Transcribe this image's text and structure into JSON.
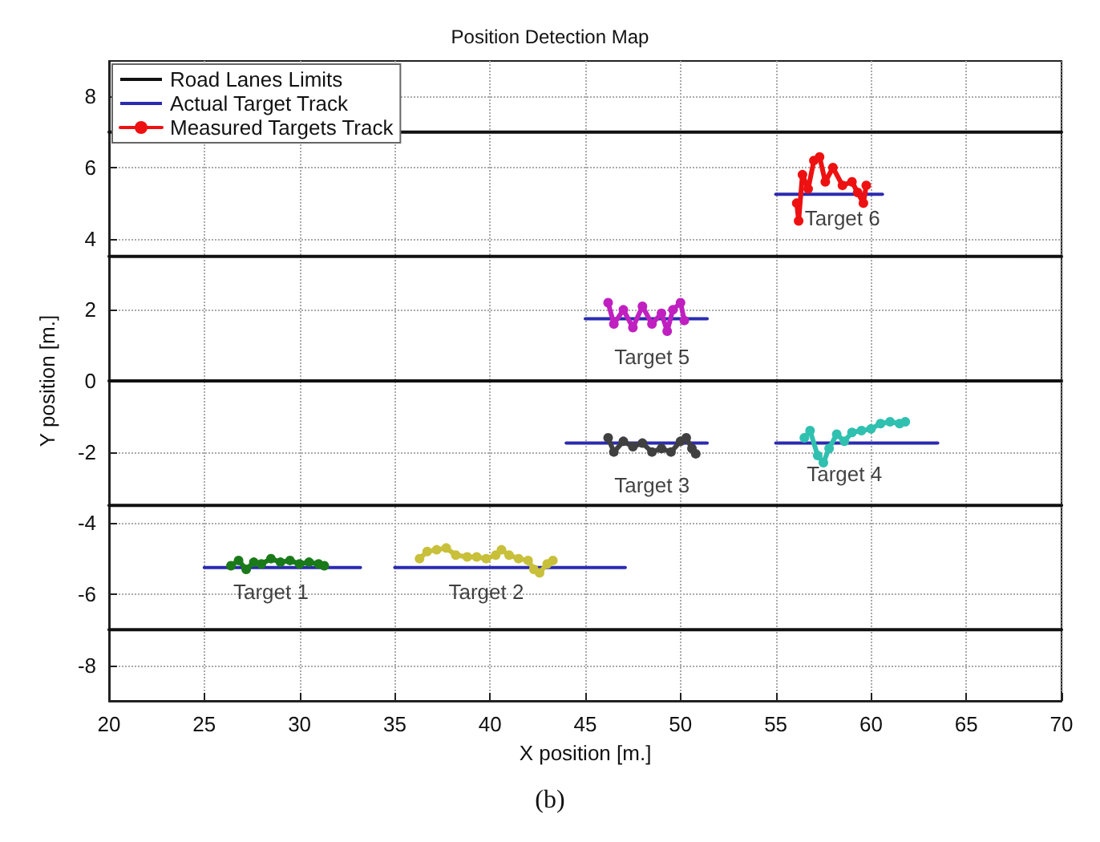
{
  "chart_data": {
    "type": "line",
    "title": "Position Detection Map",
    "xlabel": "X position [m.]",
    "ylabel": "Y position [m.]",
    "xlim": [
      20,
      70
    ],
    "xticks": [
      20,
      25,
      30,
      35,
      40,
      45,
      50,
      55,
      60,
      65,
      70
    ],
    "ylim": [
      -9,
      9
    ],
    "yticks": [
      -8,
      -6,
      -4,
      -2,
      0,
      2,
      4,
      6,
      8
    ],
    "grid": true,
    "legend": "top left",
    "series": [
      {
        "name": "Road Lanes Limits",
        "color": "#111111",
        "marker": "none",
        "x": [
          20,
          70
        ],
        "values": [
          7,
          7
        ]
      },
      {
        "color": "#111111",
        "marker": "none",
        "x": [
          20,
          70
        ],
        "values": [
          3.5,
          3.5
        ]
      },
      {
        "color": "#111111",
        "marker": "none",
        "x": [
          20,
          70
        ],
        "values": [
          0,
          0
        ]
      },
      {
        "color": "#111111",
        "marker": "none",
        "x": [
          20,
          70
        ],
        "values": [
          -3.5,
          -3.5
        ]
      },
      {
        "color": "#111111",
        "marker": "none",
        "x": [
          20,
          70
        ],
        "values": [
          -7,
          -7
        ]
      },
      {
        "name": "Actual Target Track",
        "color": "#2b2bb0",
        "marker": "none",
        "x": [
          25,
          33.2
        ],
        "values": [
          -5.25,
          -5.25
        ]
      },
      {
        "color": "#2b2bb0",
        "marker": "none",
        "x": [
          35,
          47.1
        ],
        "values": [
          -5.25,
          -5.25
        ]
      },
      {
        "color": "#2b2bb0",
        "marker": "none",
        "x": [
          44,
          51.4
        ],
        "values": [
          -1.75,
          -1.75
        ]
      },
      {
        "color": "#2b2bb0",
        "marker": "none",
        "x": [
          55,
          63.5
        ],
        "values": [
          -1.75,
          -1.75
        ]
      },
      {
        "color": "#2b2bb0",
        "marker": "none",
        "x": [
          45,
          51.4
        ],
        "values": [
          1.75,
          1.75
        ]
      },
      {
        "color": "#2b2bb0",
        "marker": "none",
        "x": [
          55,
          60.6
        ],
        "values": [
          5.25,
          5.25
        ]
      },
      {
        "color": "#1a7a1a",
        "marker": "circle",
        "x": [
          26.4,
          26.8,
          27.2,
          27.6,
          28,
          28.5,
          29,
          29.5,
          30,
          30.5,
          31,
          31.3
        ],
        "values": [
          -5.2,
          -5.05,
          -5.3,
          -5.1,
          -5.15,
          -5.0,
          -5.1,
          -5.05,
          -5.15,
          -5.1,
          -5.15,
          -5.2
        ]
      },
      {
        "color": "#c8c03a",
        "marker": "circle",
        "x": [
          36.3,
          36.7,
          37.2,
          37.7,
          38.2,
          38.8,
          39.3,
          39.8,
          40.3,
          40.6,
          41,
          41.5,
          42,
          42.3,
          42.6,
          43,
          43.3
        ],
        "values": [
          -5.0,
          -4.8,
          -4.75,
          -4.7,
          -4.9,
          -4.95,
          -4.95,
          -5.0,
          -4.9,
          -4.75,
          -4.9,
          -5.0,
          -5.05,
          -5.3,
          -5.4,
          -5.15,
          -5.05
        ]
      },
      {
        "color": "#404040",
        "marker": "circle",
        "x": [
          46.2,
          46.5,
          47,
          47.5,
          48,
          48.5,
          49,
          49.5,
          50,
          50.3,
          50.6,
          50.8
        ],
        "values": [
          -1.6,
          -2.0,
          -1.7,
          -1.85,
          -1.75,
          -2.0,
          -1.9,
          -2.0,
          -1.7,
          -1.6,
          -1.9,
          -2.05
        ]
      },
      {
        "color": "#30c0b0",
        "marker": "circle",
        "x": [
          56.5,
          56.8,
          57.2,
          57.5,
          57.8,
          58.2,
          58.6,
          59,
          59.5,
          60,
          60.5,
          61,
          61.5,
          61.8
        ],
        "values": [
          -1.6,
          -1.4,
          -2.1,
          -2.3,
          -1.9,
          -1.5,
          -1.7,
          -1.45,
          -1.4,
          -1.35,
          -1.2,
          -1.15,
          -1.2,
          -1.15
        ]
      },
      {
        "color": "#c020c0",
        "marker": "circle",
        "x": [
          46.2,
          46.5,
          47,
          47.5,
          48,
          48.5,
          49,
          49.3,
          49.6,
          50,
          50.2
        ],
        "values": [
          2.2,
          1.6,
          2.0,
          1.5,
          2.1,
          1.6,
          1.9,
          1.4,
          2.0,
          2.2,
          1.7
        ]
      },
      {
        "name": "Measured Targets Track",
        "color": "#ee1111",
        "marker": "circle",
        "x": [
          56.1,
          56.2,
          56.4,
          56.7,
          57,
          57.3,
          57.6,
          58,
          58.5,
          59,
          59.3,
          59.6,
          59.75
        ],
        "values": [
          5.0,
          4.5,
          5.8,
          5.4,
          6.2,
          6.3,
          5.6,
          6.0,
          5.5,
          5.6,
          5.3,
          5.0,
          5.5
        ]
      }
    ],
    "annotations": [
      {
        "text": "Target 1",
        "x": 28.5,
        "y": -5.0
      },
      {
        "text": "Target 2",
        "x": 39.8,
        "y": -5.0
      },
      {
        "text": "Target 3",
        "x": 48.5,
        "y": -2.0
      },
      {
        "text": "Target 4",
        "x": 58.6,
        "y": -1.7
      },
      {
        "text": "Target 5",
        "x": 48.5,
        "y": 1.6
      },
      {
        "text": "Target 6",
        "x": 58.5,
        "y": 5.5
      },
      "(b)"
    ]
  }
}
